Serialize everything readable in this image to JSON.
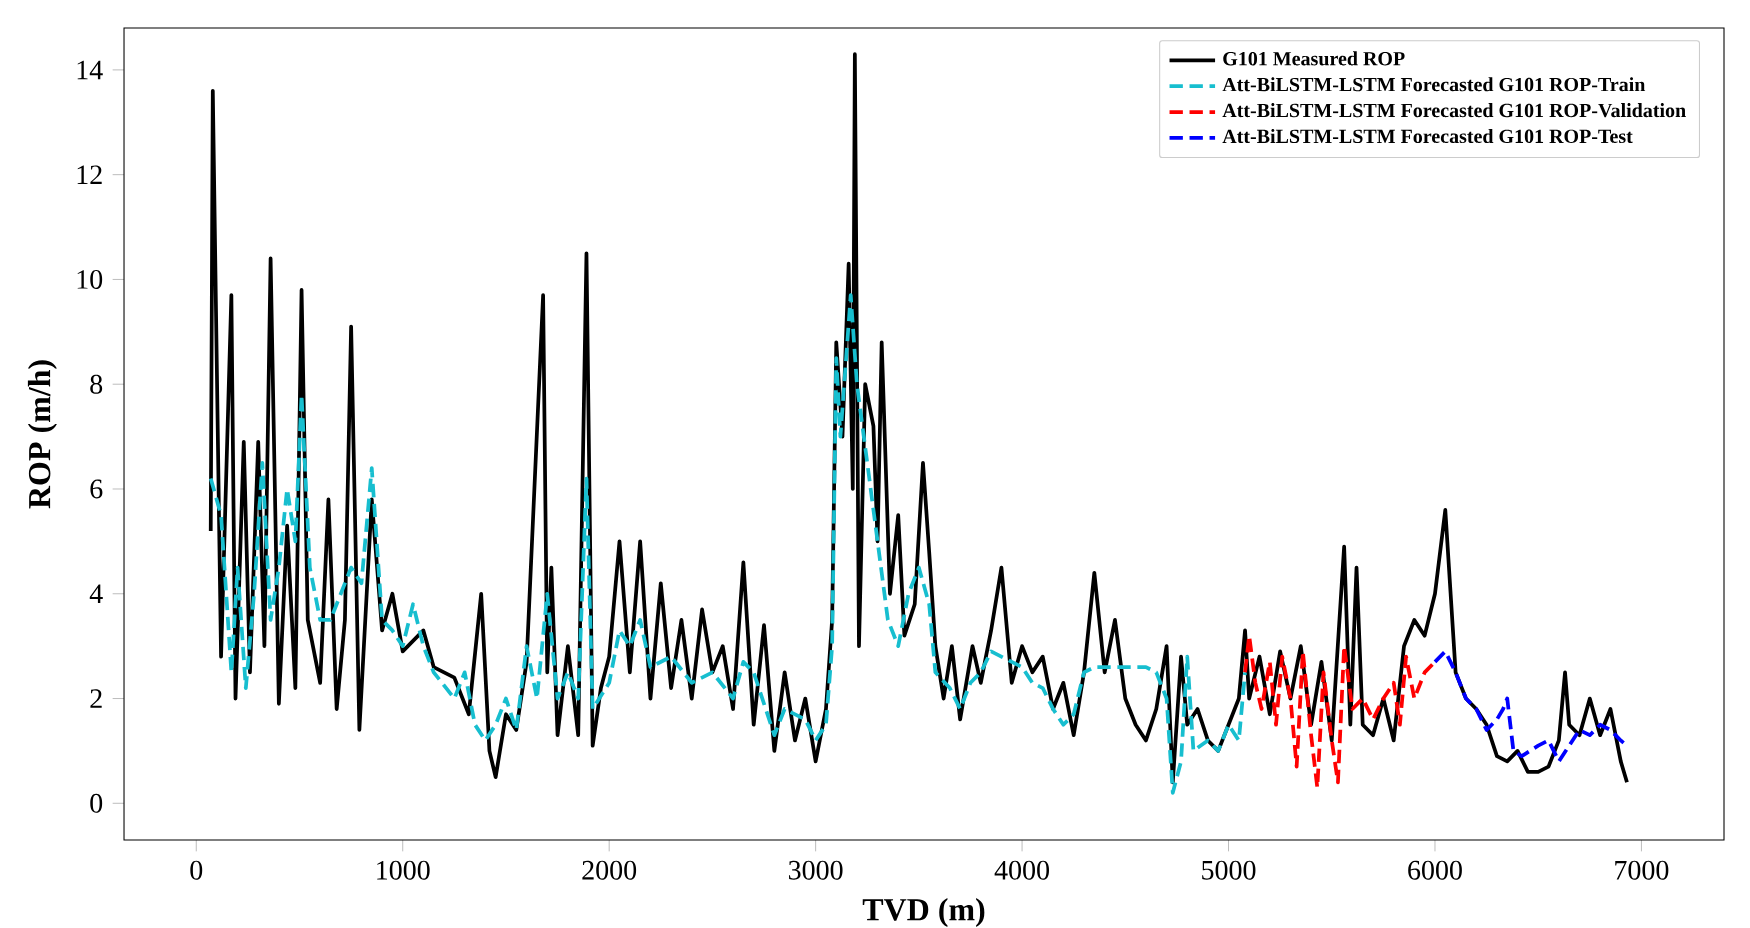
{
  "chart_data": {
    "type": "line",
    "xlabel": "TVD (m)",
    "ylabel": "ROP (m/h)",
    "xlim": [
      -350,
      7400
    ],
    "ylim": [
      -0.7,
      14.8
    ],
    "xticks": [
      0,
      1000,
      2000,
      3000,
      4000,
      5000,
      6000,
      7000
    ],
    "yticks": [
      0,
      2,
      4,
      6,
      8,
      10,
      12,
      14
    ],
    "grid": false,
    "legend": "top right",
    "marker": "none",
    "series": [
      {
        "name": "G101 Measured ROP",
        "color": "#000000",
        "line_style": "solid",
        "x": [
          70,
          80,
          120,
          170,
          190,
          230,
          260,
          300,
          330,
          360,
          400,
          440,
          480,
          510,
          540,
          600,
          640,
          680,
          720,
          750,
          790,
          850,
          900,
          950,
          1000,
          1100,
          1150,
          1250,
          1320,
          1380,
          1420,
          1450,
          1500,
          1550,
          1600,
          1680,
          1700,
          1720,
          1750,
          1800,
          1850,
          1890,
          1920,
          1960,
          2000,
          2050,
          2100,
          2150,
          2200,
          2250,
          2300,
          2350,
          2400,
          2450,
          2500,
          2550,
          2600,
          2650,
          2700,
          2750,
          2800,
          2850,
          2900,
          2950,
          3000,
          3050,
          3080,
          3100,
          3130,
          3160,
          3180,
          3190,
          3210,
          3240,
          3280,
          3300,
          3320,
          3360,
          3400,
          3430,
          3480,
          3520,
          3550,
          3580,
          3620,
          3660,
          3700,
          3760,
          3800,
          3850,
          3900,
          3950,
          4000,
          4050,
          4100,
          4150,
          4200,
          4250,
          4300,
          4350,
          4400,
          4450,
          4500,
          4550,
          4600,
          4650,
          4700,
          4730,
          4770,
          4800,
          4850,
          4900,
          4950,
          5000,
          5050,
          5080,
          5100,
          5150,
          5200,
          5250,
          5300,
          5350,
          5400,
          5450,
          5500,
          5560,
          5590,
          5620,
          5650,
          5700,
          5750,
          5800,
          5850,
          5900,
          5950,
          6000,
          6050,
          6100,
          6150,
          6200,
          6250,
          6300,
          6350,
          6400,
          6450,
          6500,
          6550,
          6600,
          6630,
          6650,
          6700,
          6750,
          6800,
          6850,
          6900,
          6930
        ],
        "values": [
          5.2,
          13.6,
          2.8,
          9.7,
          2.0,
          6.9,
          2.5,
          6.9,
          3.0,
          10.4,
          1.9,
          5.3,
          2.2,
          9.8,
          3.5,
          2.3,
          5.8,
          1.8,
          3.5,
          9.1,
          1.4,
          5.8,
          3.3,
          4.0,
          2.9,
          3.3,
          2.6,
          2.4,
          1.7,
          4.0,
          1.0,
          0.5,
          1.7,
          1.4,
          2.7,
          9.7,
          2.5,
          4.5,
          1.3,
          3.0,
          1.3,
          10.5,
          1.1,
          2.2,
          2.8,
          5.0,
          2.5,
          5.0,
          2.0,
          4.2,
          2.2,
          3.5,
          2.0,
          3.7,
          2.5,
          3.0,
          1.8,
          4.6,
          1.5,
          3.4,
          1.0,
          2.5,
          1.2,
          2.0,
          0.8,
          1.8,
          3.5,
          8.8,
          7.0,
          10.3,
          6.0,
          14.3,
          3.0,
          8.0,
          7.2,
          5.0,
          8.8,
          4.0,
          5.5,
          3.2,
          3.8,
          6.5,
          4.8,
          3.0,
          2.0,
          3.0,
          1.6,
          3.0,
          2.3,
          3.3,
          4.5,
          2.3,
          3.0,
          2.5,
          2.8,
          1.8,
          2.3,
          1.3,
          2.5,
          4.4,
          2.5,
          3.5,
          2.0,
          1.5,
          1.2,
          1.8,
          3.0,
          0.4,
          2.8,
          1.5,
          1.8,
          1.2,
          1.0,
          1.5,
          2.0,
          3.3,
          2.0,
          2.8,
          1.7,
          2.9,
          2.0,
          3.0,
          1.5,
          2.7,
          1.2,
          4.9,
          1.5,
          4.5,
          1.5,
          1.3,
          2.0,
          1.2,
          3.0,
          3.5,
          3.2,
          4.0,
          5.6,
          2.5,
          2.0,
          1.8,
          1.5,
          0.9,
          0.8,
          1.0,
          0.6,
          0.6,
          0.7,
          1.2,
          2.5,
          1.5,
          1.3,
          2.0,
          1.3,
          1.8,
          0.8,
          0.4
        ]
      },
      {
        "name": "Att-BiLSTM-LSTM Forecasted G101 ROP-Train",
        "color": "#17becf",
        "line_style": "dashed",
        "x": [
          70,
          120,
          170,
          200,
          240,
          280,
          320,
          360,
          400,
          440,
          480,
          510,
          550,
          600,
          650,
          700,
          750,
          800,
          850,
          900,
          950,
          1000,
          1050,
          1100,
          1150,
          1250,
          1300,
          1350,
          1400,
          1450,
          1500,
          1550,
          1600,
          1650,
          1700,
          1750,
          1800,
          1850,
          1890,
          1920,
          2000,
          2050,
          2100,
          2150,
          2200,
          2300,
          2400,
          2500,
          2600,
          2650,
          2700,
          2800,
          2850,
          2950,
          3000,
          3050,
          3080,
          3100,
          3120,
          3170,
          3200,
          3250,
          3300,
          3350,
          3400,
          3450,
          3500,
          3550,
          3580,
          3650,
          3700,
          3750,
          3800,
          3850,
          3900,
          3950,
          4000,
          4050,
          4100,
          4150,
          4200,
          4250,
          4300,
          4350,
          4400,
          4500,
          4600,
          4650,
          4700,
          4730,
          4770,
          4800,
          4830,
          4900,
          4950,
          5000,
          5050,
          5080
        ],
        "values": [
          6.2,
          5.5,
          2.5,
          4.5,
          2.2,
          4.0,
          6.5,
          3.5,
          4.5,
          6.0,
          5.0,
          7.8,
          4.5,
          3.5,
          3.5,
          4.0,
          4.5,
          4.2,
          6.4,
          3.5,
          3.3,
          3.0,
          3.8,
          3.0,
          2.5,
          2.0,
          2.5,
          1.5,
          1.2,
          1.5,
          2.0,
          1.4,
          3.0,
          2.0,
          4.0,
          2.0,
          2.5,
          2.0,
          6.2,
          1.8,
          2.3,
          3.3,
          3.0,
          3.5,
          2.6,
          2.8,
          2.3,
          2.5,
          2.0,
          2.7,
          2.5,
          1.3,
          1.8,
          1.6,
          1.2,
          1.5,
          3.0,
          8.5,
          7.0,
          9.7,
          8.0,
          6.5,
          5.0,
          3.5,
          3.0,
          4.0,
          4.5,
          3.8,
          2.5,
          2.2,
          1.8,
          2.3,
          2.5,
          2.9,
          2.8,
          2.7,
          2.6,
          2.3,
          2.2,
          1.8,
          1.5,
          1.7,
          2.5,
          2.6,
          2.6,
          2.6,
          2.6,
          2.5,
          2.0,
          0.2,
          0.8,
          2.8,
          1.0,
          1.2,
          1.0,
          1.5,
          1.2,
          2.5
        ]
      },
      {
        "name": "Att-BiLSTM-LSTM Forecasted G101 ROP-Validation",
        "color": "#ff0000",
        "line_style": "dashed",
        "x": [
          5080,
          5100,
          5130,
          5160,
          5200,
          5230,
          5260,
          5300,
          5330,
          5360,
          5400,
          5430,
          5460,
          5500,
          5530,
          5560,
          5600,
          5650,
          5700,
          5750,
          5800,
          5830,
          5860,
          5900,
          5950,
          6000
        ],
        "values": [
          2.5,
          3.2,
          2.3,
          1.8,
          2.7,
          1.5,
          2.8,
          2.0,
          0.7,
          2.9,
          1.3,
          0.3,
          2.5,
          1.2,
          0.4,
          3.0,
          1.8,
          2.0,
          1.6,
          2.0,
          2.3,
          1.5,
          2.8,
          2.0,
          2.5,
          2.7
        ]
      },
      {
        "name": "Att-BiLSTM-LSTM Forecasted G101 ROP-Test",
        "color": "#0000ff",
        "line_style": "dashed",
        "x": [
          6000,
          6050,
          6100,
          6150,
          6200,
          6250,
          6300,
          6330,
          6350,
          6380,
          6420,
          6500,
          6550,
          6600,
          6650,
          6700,
          6750,
          6800,
          6850,
          6900,
          6930
        ],
        "values": [
          2.7,
          2.9,
          2.5,
          2.0,
          1.8,
          1.4,
          1.6,
          1.8,
          2.0,
          1.0,
          0.9,
          1.1,
          1.2,
          0.8,
          1.1,
          1.4,
          1.3,
          1.5,
          1.4,
          1.2,
          1.1
        ]
      }
    ]
  }
}
